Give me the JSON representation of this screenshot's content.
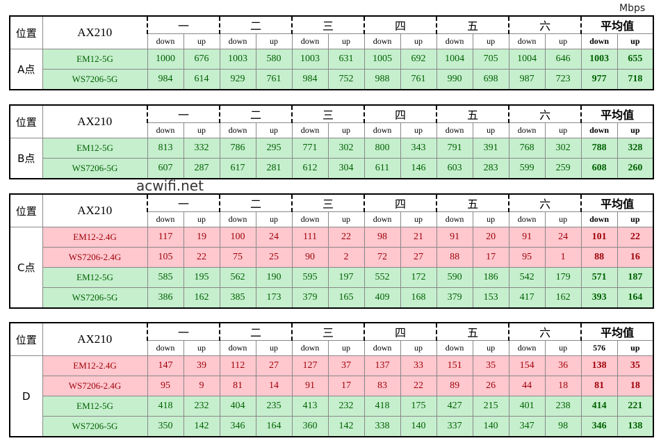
{
  "unit": "Mbps",
  "watermark": "acwifi.net",
  "tables": [
    {
      "location_header": "位置",
      "adapter": "AX210",
      "groups": [
        "一",
        "二",
        "三",
        "四",
        "五",
        "六",
        "平均值"
      ],
      "subheaders": [
        "down",
        "up",
        "down",
        "up",
        "down",
        "up",
        "down",
        "up",
        "down",
        "up",
        "down",
        "up",
        "down",
        "up"
      ],
      "location": "A点",
      "rows": [
        {
          "device": "EM12-5G",
          "color": "#c6efce",
          "values": [
            1000,
            676,
            1003,
            580,
            1003,
            631,
            1005,
            692,
            1004,
            705,
            1004,
            646,
            1003,
            655
          ]
        },
        {
          "device": "WS7206-5G",
          "color": "#c6efce",
          "values": [
            984,
            614,
            929,
            761,
            984,
            752,
            988,
            761,
            990,
            698,
            987,
            723,
            977,
            718
          ]
        }
      ]
    },
    {
      "location_header": "位置",
      "adapter": "AX210",
      "groups": [
        "一",
        "二",
        "三",
        "四",
        "五",
        "六",
        "平均值"
      ],
      "subheaders": [
        "down",
        "up",
        "down",
        "up",
        "down",
        "up",
        "down",
        "up",
        "down",
        "up",
        "down",
        "up",
        "down",
        "up"
      ],
      "location": "B点",
      "rows": [
        {
          "device": "EM12-5G",
          "color": "#c6efce",
          "values": [
            813,
            332,
            786,
            295,
            771,
            302,
            800,
            343,
            791,
            391,
            768,
            302,
            788,
            328
          ]
        },
        {
          "device": "WS7206-5G",
          "color": "#c6efce",
          "values": [
            607,
            287,
            617,
            281,
            612,
            304,
            611,
            146,
            603,
            283,
            599,
            259,
            608,
            260
          ]
        }
      ]
    },
    {
      "location_header": "位置",
      "adapter": "AX210",
      "groups": [
        "一",
        "二",
        "三",
        "四",
        "五",
        "六",
        "平均值"
      ],
      "subheaders": [
        "down",
        "up",
        "down",
        "up",
        "down",
        "up",
        "down",
        "up",
        "down",
        "up",
        "down",
        "up",
        "down",
        "up"
      ],
      "location": "C点",
      "rows": [
        {
          "device": "EM12-2.4G",
          "color": "#ffc7ce",
          "values": [
            117,
            19,
            100,
            24,
            111,
            22,
            98,
            21,
            91,
            20,
            91,
            24,
            101,
            22
          ]
        },
        {
          "device": "WS7206-2.4G",
          "color": "#ffc7ce",
          "values": [
            105,
            22,
            75,
            25,
            90,
            2,
            72,
            27,
            88,
            17,
            95,
            1,
            88,
            16
          ]
        },
        {
          "device": "EM12-5G",
          "color": "#c6efce",
          "values": [
            585,
            195,
            562,
            190,
            595,
            197,
            552,
            172,
            590,
            186,
            542,
            179,
            571,
            187
          ]
        },
        {
          "device": "WS7206-5G",
          "color": "#c6efce",
          "values": [
            386,
            162,
            385,
            173,
            379,
            165,
            409,
            168,
            379,
            153,
            417,
            162,
            393,
            164
          ]
        }
      ]
    },
    {
      "location_header": "位置",
      "adapter": "AX210",
      "groups": [
        "一",
        "二",
        "三",
        "四",
        "五",
        "六",
        "平均值"
      ],
      "subheaders": [
        "down",
        "up",
        "down",
        "up",
        "down",
        "up",
        "down",
        "up",
        "down",
        "up",
        "down",
        "up",
        576,
        "up"
      ],
      "location": "D",
      "rows": [
        {
          "device": "EM12-2.4G",
          "color": "#ffc7ce",
          "values": [
            147,
            39,
            112,
            27,
            127,
            37,
            137,
            33,
            151,
            35,
            154,
            36,
            138,
            35
          ]
        },
        {
          "device": "WS7206-2.4G",
          "color": "#ffc7ce",
          "values": [
            95,
            9,
            81,
            14,
            91,
            17,
            83,
            22,
            89,
            26,
            44,
            18,
            81,
            18
          ]
        },
        {
          "device": "EM12-5G",
          "color": "#c6efce",
          "values": [
            418,
            232,
            404,
            235,
            413,
            232,
            418,
            175,
            427,
            215,
            401,
            238,
            414,
            221
          ]
        },
        {
          "device": "WS7206-5G",
          "color": "#c6efce",
          "values": [
            350,
            142,
            346,
            164,
            360,
            142,
            338,
            140,
            337,
            140,
            347,
            98,
            346,
            138
          ]
        }
      ]
    }
  ]
}
